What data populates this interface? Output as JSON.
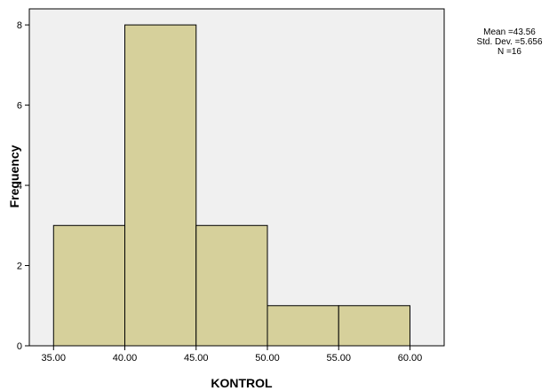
{
  "chart_data": {
    "type": "bar",
    "xlabel": "KONTROL",
    "ylabel": "Frequency",
    "bins": [
      {
        "start": 35,
        "end": 40,
        "value": 3
      },
      {
        "start": 40,
        "end": 45,
        "value": 8
      },
      {
        "start": 45,
        "end": 50,
        "value": 3
      },
      {
        "start": 50,
        "end": 55,
        "value": 1
      },
      {
        "start": 55,
        "end": 60,
        "value": 1
      }
    ],
    "xlim": [
      33.3,
      62.4
    ],
    "ylim": [
      0,
      8.4
    ],
    "x_ticks": [
      "35.00",
      "40.00",
      "45.00",
      "50.00",
      "55.00",
      "60.00"
    ],
    "x_tick_values": [
      35,
      40,
      45,
      50,
      55,
      60
    ],
    "y_ticks": [
      "0",
      "2",
      "4",
      "6",
      "8"
    ],
    "y_tick_values": [
      0,
      2,
      4,
      6,
      8
    ],
    "grid": false,
    "bar_color": "#d6d09b",
    "plot_background": "#f0f0f0",
    "stats": {
      "mean": "Mean =43.56",
      "std_dev": "Std. Dev. =5.656",
      "n": "N =16"
    }
  }
}
